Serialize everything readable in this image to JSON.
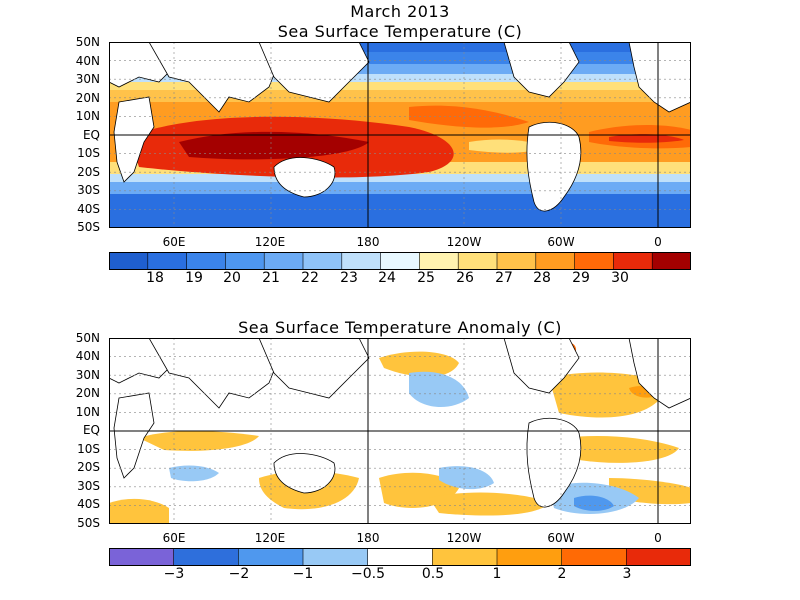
{
  "header": {
    "date": "March 2013"
  },
  "panels": [
    {
      "title": "Sea Surface Temperature (C)",
      "y_ticks": [
        "50N",
        "40N",
        "30N",
        "20N",
        "10N",
        "EQ",
        "10S",
        "20S",
        "30S",
        "40S",
        "50S"
      ],
      "x_ticks": [
        "60E",
        "120E",
        "180",
        "120W",
        "60W",
        "0"
      ],
      "colorbar": {
        "colors": [
          "#1f5fcf",
          "#2a6fe0",
          "#3b84ea",
          "#4e97f0",
          "#6cabf5",
          "#8fc3f8",
          "#bfe0fb",
          "#e8f8ff",
          "#fff3b0",
          "#ffe07a",
          "#ffc24a",
          "#ff9c21",
          "#ff6a08",
          "#e82a0a",
          "#a40000"
        ],
        "labels": [
          "18",
          "19",
          "20",
          "21",
          "22",
          "23",
          "24",
          "25",
          "26",
          "27",
          "28",
          "29",
          "30"
        ]
      }
    },
    {
      "title": "Sea Surface Temperature Anomaly (C)",
      "y_ticks": [
        "50N",
        "40N",
        "30N",
        "20N",
        "10N",
        "EQ",
        "10S",
        "20S",
        "30S",
        "40S",
        "50S"
      ],
      "x_ticks": [
        "60E",
        "120E",
        "180",
        "120W",
        "60W",
        "0"
      ],
      "colorbar": {
        "colors": [
          "#7a63d8",
          "#2e6fdc",
          "#4f98ee",
          "#98c9f5",
          "#ffffff",
          "#ffc43d",
          "#ff9e0f",
          "#ff6a05",
          "#e82a0a"
        ],
        "labels": [
          "−3",
          "−2",
          "−1",
          "−0.5",
          "0.5",
          "1",
          "2",
          "3"
        ]
      }
    }
  ]
}
